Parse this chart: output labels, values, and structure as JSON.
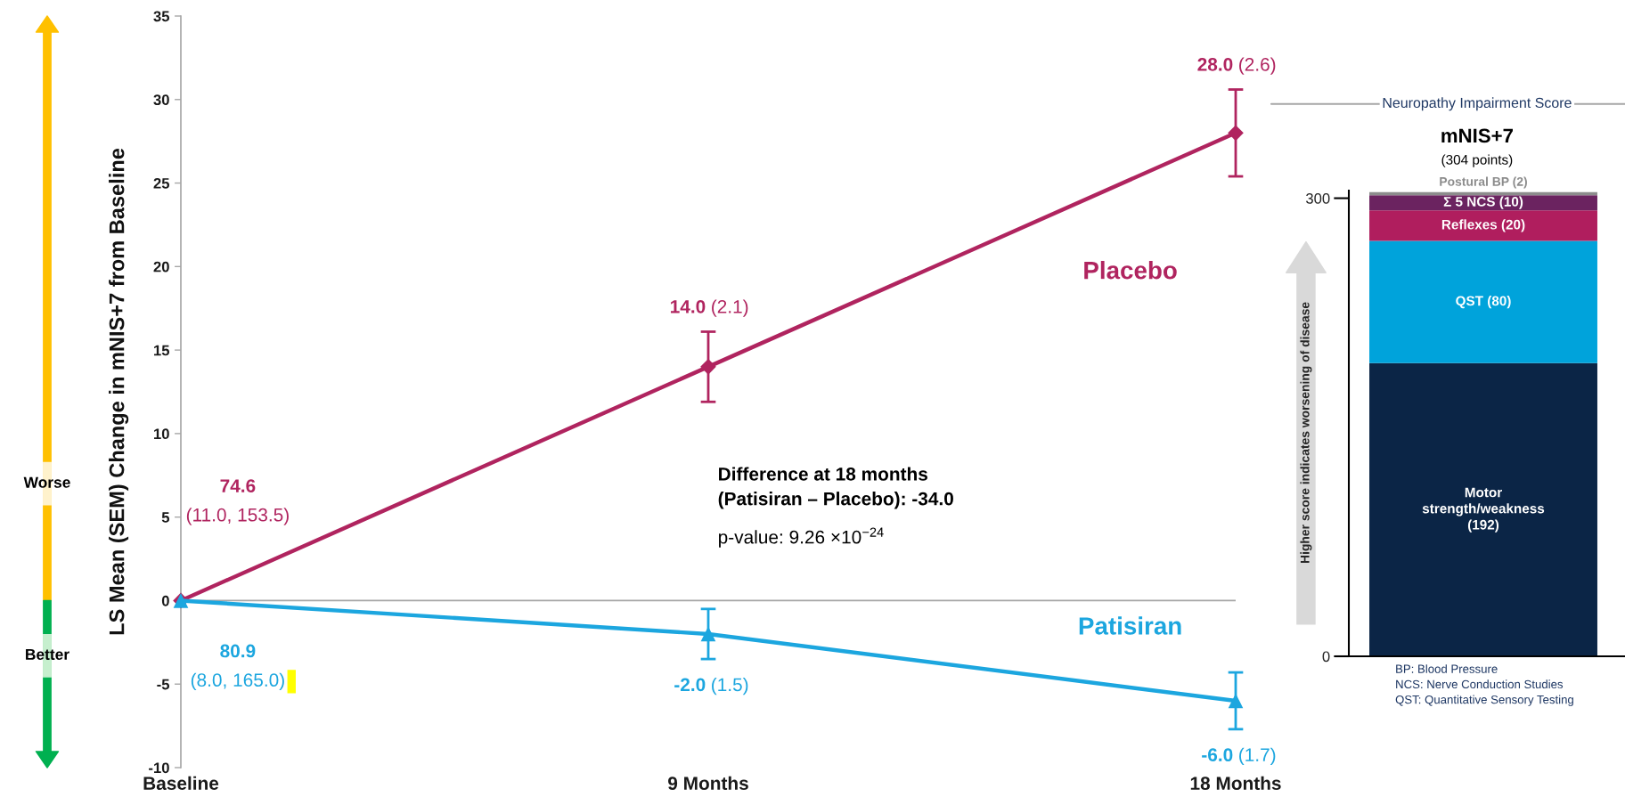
{
  "chart_data": [
    {
      "type": "line",
      "ylabel": "LS Mean (SEM) Change in mNIS+7 from Baseline",
      "categories": [
        "Baseline",
        "9 Months",
        "18 Months"
      ],
      "series": [
        {
          "name": "Placebo",
          "color": "#b0245f",
          "marker": "diamond",
          "values": [
            0,
            14.0,
            28.0
          ],
          "errors": [
            null,
            2.1,
            2.6
          ],
          "value_labels": [
            null,
            "14.0 (2.1)",
            "28.0 (2.6)"
          ]
        },
        {
          "name": "Patisiran",
          "color": "#1ca6df",
          "marker": "triangle",
          "values": [
            0,
            -2.0,
            -6.0
          ],
          "errors": [
            null,
            1.5,
            1.7
          ],
          "value_labels": [
            null,
            "-2.0 (1.5)",
            "-6.0 (1.7)"
          ]
        }
      ],
      "ylim": [
        -10,
        35
      ],
      "yticks": [
        -10,
        -5,
        0,
        5,
        10,
        15,
        20,
        25,
        30,
        35
      ],
      "ref_lines": [
        {
          "axis": "y",
          "value": 0,
          "color": "#a6a6a6"
        }
      ],
      "annotations": [
        "74.6\n(11.0, 153.5)",
        "80.9\n(8.0, 165.0)",
        "Difference at 18 months\n(Patisiran – Placebo): -34.0",
        "p-value: 9.26 ×10$^{−24}$",
        "Worse",
        "Better"
      ]
    },
    {
      "type": "bar",
      "stacked": true,
      "title": "Neuropathy Impairment Score",
      "subtitle": "mNIS+7\n(304 points)",
      "categories": [
        null
      ],
      "series": [
        {
          "color": "#0b2546",
          "values": [
            192
          ],
          "value_labels": [
            "Motor\nstrength/weakness\n(192)"
          ]
        },
        {
          "color": "#00a3db",
          "values": [
            80
          ],
          "value_labels": [
            "QST (80)"
          ]
        },
        {
          "color": "#b01e5e",
          "values": [
            20
          ],
          "value_labels": [
            "Reflexes (20)"
          ]
        },
        {
          "color": "#6b2360",
          "values": [
            10
          ],
          "value_labels": [
            "Σ 5 NCS (10)"
          ]
        },
        {
          "color": "#8c8c8c",
          "values": [
            2
          ],
          "value_labels": [
            "Postural BP (2)"
          ]
        }
      ],
      "ylim": [
        0,
        305
      ],
      "yticks": [
        0,
        300
      ],
      "annotations": [
        "Higher score indicates worsening of disease",
        "BP: Blood Pressure",
        "NCS: Nerve Conduction Studies",
        "QST: Quantitative Sensory Testing"
      ]
    }
  ]
}
